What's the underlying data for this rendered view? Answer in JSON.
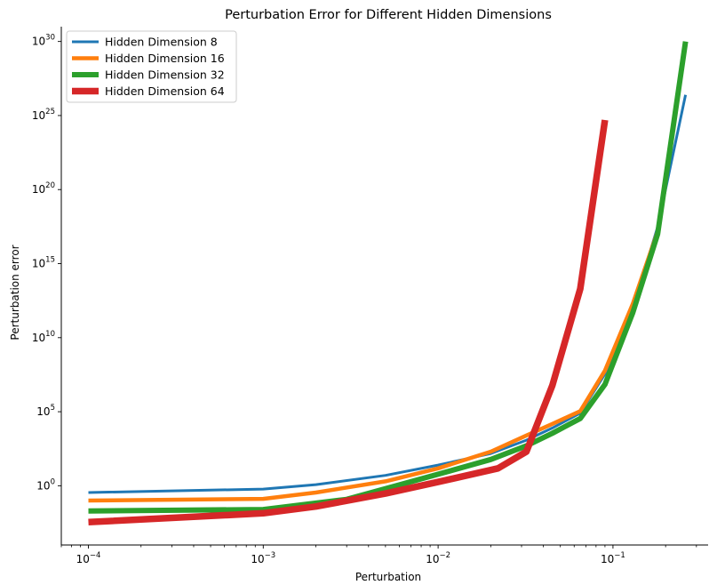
{
  "chart_data": {
    "type": "line",
    "title": "Perturbation Error for Different Hidden Dimensions",
    "xlabel": "Perturbation",
    "ylabel": "Perturbation error",
    "x_scale": "log",
    "y_scale": "log",
    "xlim": [
      7e-05,
      0.35
    ],
    "ylim": [
      0.0001,
      1e+31
    ],
    "grid": false,
    "legend_position": "top-left",
    "x_ticks": [
      {
        "base": "10",
        "exp": "−4",
        "value": 0.0001
      },
      {
        "base": "10",
        "exp": "−3",
        "value": 0.001
      },
      {
        "base": "10",
        "exp": "−2",
        "value": 0.01
      },
      {
        "base": "10",
        "exp": "−1",
        "value": 0.1
      }
    ],
    "y_ticks": [
      {
        "base": "10",
        "exp": "0",
        "value": 1
      },
      {
        "base": "10",
        "exp": "5",
        "value": 100000
      },
      {
        "base": "10",
        "exp": "10",
        "value": 10000000000.0
      },
      {
        "base": "10",
        "exp": "15",
        "value": 1000000000000000.0
      },
      {
        "base": "10",
        "exp": "20",
        "value": 1e+20
      },
      {
        "base": "10",
        "exp": "25",
        "value": 1e+25
      },
      {
        "base": "10",
        "exp": "30",
        "value": 1e+30
      }
    ],
    "series": [
      {
        "name": "Hidden Dimension 8",
        "color": "#1f77b4",
        "x": [
          0.0001,
          0.001,
          0.002,
          0.005,
          0.01,
          0.02,
          0.032,
          0.045,
          0.065,
          0.09,
          0.13,
          0.18,
          0.26
        ],
        "y": [
          0.35,
          0.6,
          1.2,
          5,
          25,
          150,
          1200,
          8000,
          80000,
          35000000.0,
          1000000000000.0,
          3e+17,
          2.5e+26
        ]
      },
      {
        "name": "Hidden Dimension 16",
        "color": "#ff7f0e",
        "x": [
          0.0001,
          0.001,
          0.002,
          0.005,
          0.01,
          0.02,
          0.032,
          0.045,
          0.065,
          0.09,
          0.13,
          0.18
        ],
        "y": [
          0.1,
          0.13,
          0.35,
          2,
          15,
          200,
          2500,
          15000,
          110000,
          60000000.0,
          2000000000000.0,
          1.5e+17
        ]
      },
      {
        "name": "Hidden Dimension 32",
        "color": "#2ca02c",
        "x": [
          0.0001,
          0.001,
          0.003,
          0.01,
          0.02,
          0.032,
          0.045,
          0.065,
          0.09,
          0.13,
          0.18,
          0.26
        ],
        "y": [
          0.02,
          0.025,
          0.12,
          6,
          60,
          500,
          3500,
          35000,
          7000000.0,
          500000000000.0,
          1e+17,
          1e+30
        ]
      },
      {
        "name": "Hidden Dimension 64",
        "color": "#d62728",
        "x": [
          0.0001,
          0.001,
          0.002,
          0.005,
          0.01,
          0.022,
          0.032,
          0.045,
          0.065,
          0.09
        ],
        "y": [
          0.0035,
          0.014,
          0.04,
          0.3,
          1.8,
          15,
          200,
          6000000.0,
          20000000000000.0,
          5e+24
        ]
      }
    ]
  }
}
